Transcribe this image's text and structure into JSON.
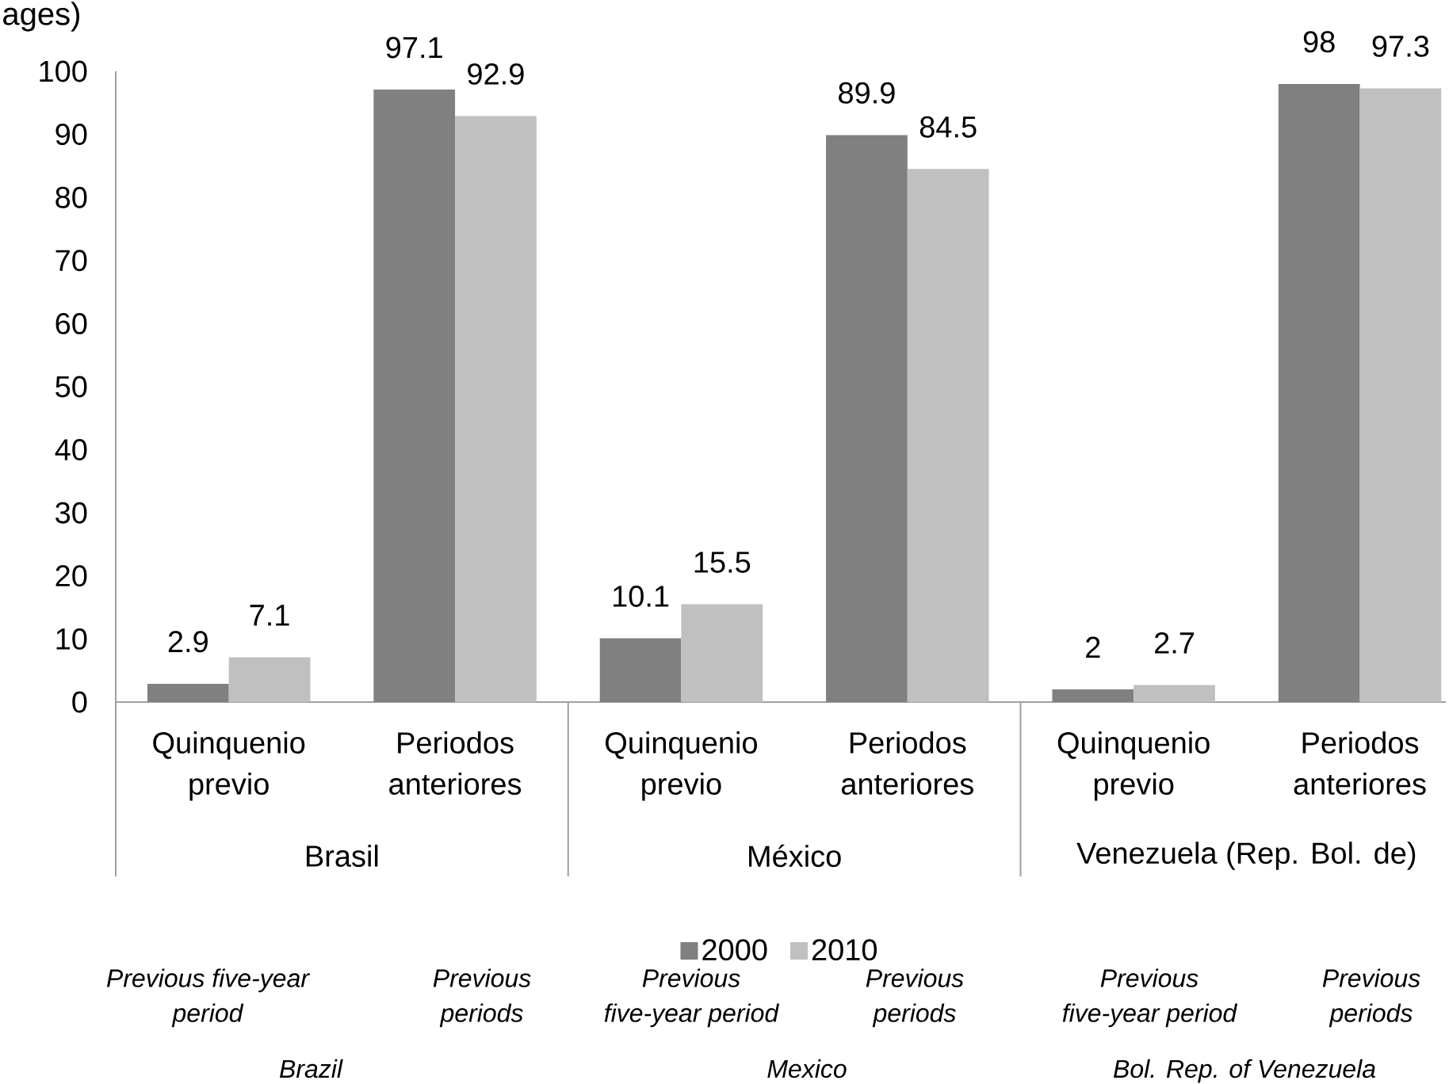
{
  "chart_data": {
    "type": "bar",
    "title": "ages)",
    "categories": [
      "Quinquenio previo",
      "Periodos anteriores",
      "Quinquenio previo",
      "Periodos anteriores",
      "Quinquenio previo",
      "Periodos anteriores"
    ],
    "series": [
      {
        "name": "2000",
        "color": "#808080",
        "values": [
          2.9,
          97.1,
          10.1,
          89.9,
          2,
          98
        ]
      },
      {
        "name": "2010",
        "color": "#c0c0c0",
        "values": [
          7.1,
          92.9,
          15.5,
          84.5,
          2.7,
          97.3
        ]
      }
    ],
    "ylim": [
      0,
      100
    ],
    "yticks": [
      0,
      10,
      20,
      30,
      40,
      50,
      60,
      70,
      80,
      90,
      100
    ],
    "data_labels": true,
    "legend": "bottom",
    "annotations": [
      "Brasil",
      "México",
      "Venezuela (Rep. Bol. de)",
      "Previous five-year period",
      "Previous periods",
      "Previous five-year period",
      "Previous periods",
      "Previous five-year period",
      "Previous periods",
      "Brazil",
      "Mexico",
      "Bol. Rep. of Venezuela"
    ]
  }
}
